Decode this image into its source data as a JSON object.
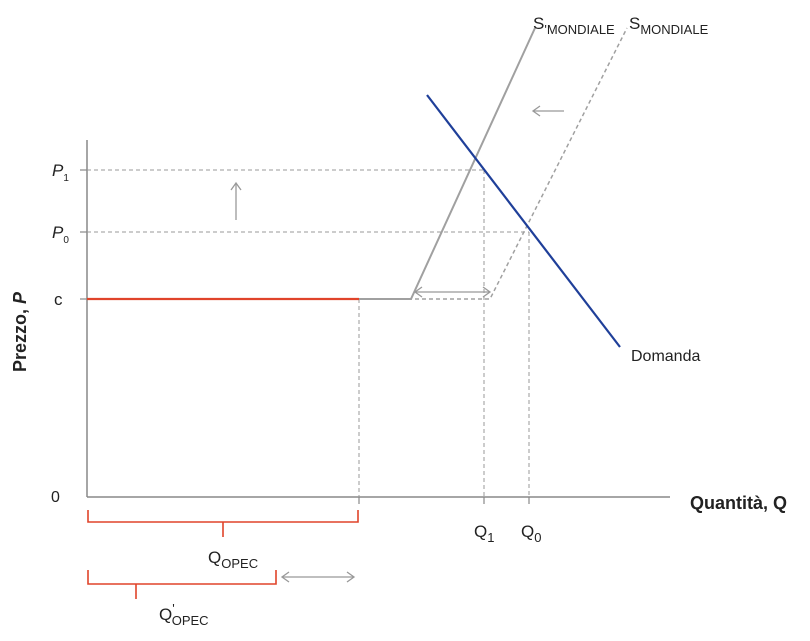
{
  "axes": {
    "y_title_main": "Prezzo, ",
    "y_title_var": "P",
    "x_title": "Quantità, Q",
    "origin_label": "0"
  },
  "y_ticks": {
    "p1_base": "P",
    "p1_sub": "1",
    "p0_base": "P",
    "p0_sub": "0",
    "c": "c"
  },
  "x_ticks": {
    "q1_base": "Q",
    "q1_sub": "1",
    "q0_base": "Q",
    "q0_sub": "0"
  },
  "curves": {
    "s_prime_base": "S",
    "s_prime_sub": "'MONDIALE",
    "s_base": "S",
    "s_sub": "MONDIALE",
    "demand": "Domanda"
  },
  "brackets": {
    "opec_base": "Q",
    "opec_sub": "OPEC",
    "opec_prime_base": "Q",
    "opec_prime_sub": "OPEC",
    "opec_prime_mark": "'"
  },
  "colors": {
    "axis": "#888888",
    "supply": "#a0a0a0",
    "demand": "#1f3f99",
    "opec": "#e0442a",
    "guide": "#888888"
  }
}
